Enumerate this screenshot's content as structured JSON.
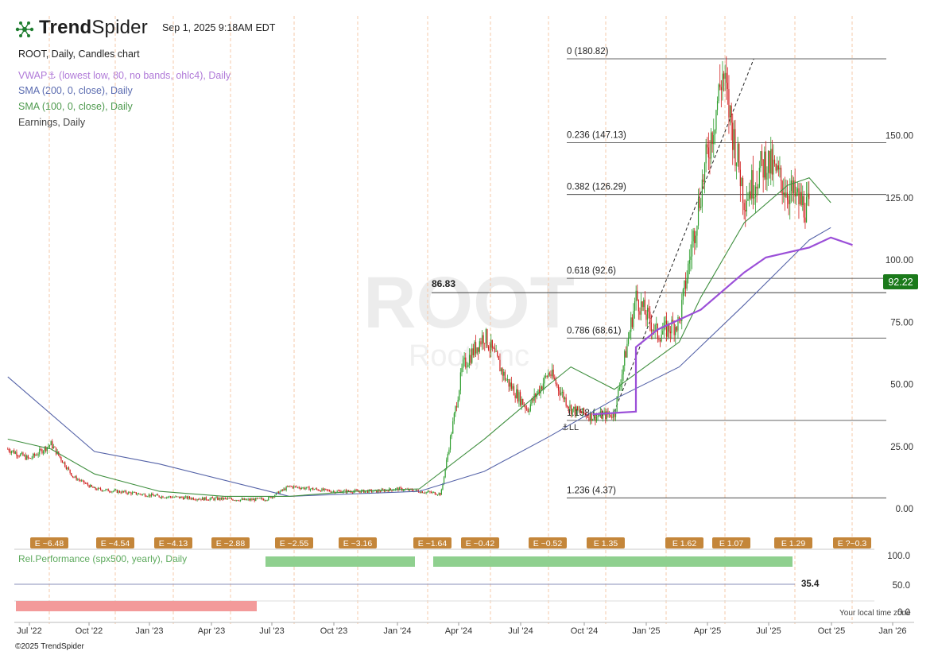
{
  "header": {
    "brand_bold": "Trend",
    "brand_light": "Spider",
    "timestamp": "Sep 1, 2025 9:18AM EDT",
    "chart_title": "ROOT, Daily, Candles chart",
    "watermark_symbol": "ROOT",
    "watermark_name": "Root, Inc"
  },
  "legend": [
    {
      "label": "VWAP⚓ (lowest low, 80, no bands, ohlc4), Daily",
      "color": "#b07ad8"
    },
    {
      "label": "SMA (200, 0, close), Daily",
      "color": "#5a6bb0"
    },
    {
      "label": "SMA (100, 0, close), Daily",
      "color": "#4e9a4e"
    },
    {
      "label": "Earnings, Daily",
      "color": "#444444"
    }
  ],
  "colors": {
    "up": "#2e9e2e",
    "down": "#d11c1c",
    "vwap": "#9b4fd8",
    "sma200": "#5563a8",
    "sma100": "#3f8f3f",
    "earnings": "#c4863a",
    "price_badge": "#1b7a1b",
    "rel_perf": "#8fd08f",
    "bottom_bar": "#f39a9a"
  },
  "chart_data": {
    "type": "candlestick",
    "symbol": "ROOT",
    "interval": "Daily",
    "y_axis": {
      "ticks": [
        "0.00",
        "25.00",
        "50.00",
        "75.00",
        "100.00",
        "125.00",
        "150.00"
      ],
      "ylim": [
        -4,
        186
      ]
    },
    "x_axis": {
      "ticks": [
        "Jul '22",
        "Oct '22",
        "Jan '23",
        "Apr '23",
        "Jul '23",
        "Oct '23",
        "Jan '24",
        "Apr '24",
        "Jul '24",
        "Oct '24",
        "Jan '25",
        "Apr '25",
        "Jul '25",
        "Oct '25",
        "Jan '26"
      ]
    },
    "last_price": "92.22",
    "price_level": {
      "label": "86.83",
      "value": 86.83
    },
    "fib_levels": [
      {
        "label": "0 (180.82)",
        "value": 180.82
      },
      {
        "label": "0.236 (147.13)",
        "value": 147.13
      },
      {
        "label": "0.382 (126.29)",
        "value": 126.29
      },
      {
        "label": "0.618 (92.6)",
        "value": 92.6
      },
      {
        "label": "0.786 (68.61)",
        "value": 68.61
      },
      {
        "label": "1.158 (..)",
        "value": 35.5
      },
      {
        "label": "1.236 (4.37)",
        "value": 4.37
      }
    ],
    "trendline": [
      {
        "x": "Oct '24",
        "y": 39
      },
      {
        "x": "Apr '25",
        "y": 180.8
      }
    ],
    "anchor_label": "⚓LL",
    "series": [
      {
        "name": "Price (close)",
        "points": [
          [
            "Jun '22",
            24
          ],
          [
            "Jul '22",
            20
          ],
          [
            "Aug '22",
            26
          ],
          [
            "Sep '22",
            13
          ],
          [
            "Oct '22",
            8
          ],
          [
            "Nov '22",
            7
          ],
          [
            "Dec '22",
            6
          ],
          [
            "Jan '23",
            5
          ],
          [
            "Feb '23",
            4.5
          ],
          [
            "Mar '23",
            4
          ],
          [
            "Apr '23",
            4
          ],
          [
            "May '23",
            3.5
          ],
          [
            "Jun '23",
            4
          ],
          [
            "Jul '23",
            9
          ],
          [
            "Aug '23",
            8
          ],
          [
            "Sep '23",
            7
          ],
          [
            "Oct '23",
            7
          ],
          [
            "Nov '23",
            7
          ],
          [
            "Dec '23",
            8
          ],
          [
            "Jan '24",
            7
          ],
          [
            "Feb '24",
            6
          ],
          [
            "Mar '24",
            57
          ],
          [
            "Apr '24",
            70
          ],
          [
            "May '24",
            52
          ],
          [
            "Jun '24",
            40
          ],
          [
            "Jul '24",
            55
          ],
          [
            "Aug '24",
            40
          ],
          [
            "Sep '24",
            37
          ],
          [
            "Oct '24",
            38
          ],
          [
            "Nov '24",
            85
          ],
          [
            "Dec '24",
            70
          ],
          [
            "Jan '25",
            75
          ],
          [
            "Feb '25",
            128
          ],
          [
            "Mar '25",
            175
          ],
          [
            "Apr '25",
            125
          ],
          [
            "May '25",
            140
          ],
          [
            "Jun '25",
            128
          ],
          [
            "Jul '25",
            120
          ],
          [
            "Aug '25",
            88
          ],
          [
            "Sep '25",
            92.22
          ]
        ]
      },
      {
        "name": "SMA (200, 0, close)",
        "points": [
          [
            "Jun '22",
            53
          ],
          [
            "Oct '22",
            23
          ],
          [
            "Jan '23",
            18
          ],
          [
            "Jul '23",
            5
          ],
          [
            "Jan '24",
            7
          ],
          [
            "Apr '24",
            15
          ],
          [
            "Jul '24",
            29
          ],
          [
            "Oct '24",
            44
          ],
          [
            "Jan '25",
            57
          ],
          [
            "Apr '25",
            82
          ],
          [
            "Jul '25",
            108
          ],
          [
            "Aug '25",
            113
          ]
        ]
      },
      {
        "name": "SMA (100, 0, close)",
        "points": [
          [
            "Jun '22",
            28
          ],
          [
            "Aug '22",
            24
          ],
          [
            "Oct '22",
            14
          ],
          [
            "Jan '23",
            7
          ],
          [
            "Apr '23",
            5
          ],
          [
            "Jul '23",
            5
          ],
          [
            "Oct '23",
            7
          ],
          [
            "Jan '24",
            8
          ],
          [
            "Apr '24",
            28
          ],
          [
            "Jul '24",
            50
          ],
          [
            "Aug '24",
            57
          ],
          [
            "Oct '24",
            48
          ],
          [
            "Jan '25",
            67
          ],
          [
            "Feb '25",
            85
          ],
          [
            "Apr '25",
            115
          ],
          [
            "Jun '25",
            130
          ],
          [
            "Jul '25",
            133
          ],
          [
            "Aug '25",
            123
          ]
        ]
      },
      {
        "name": "VWAP (anchored)",
        "points": [
          [
            "Sep '24",
            38
          ],
          [
            "Nov '24",
            39
          ],
          [
            "Nov '24",
            65
          ],
          [
            "Dec '24",
            72
          ],
          [
            "Feb '25",
            80
          ],
          [
            "Apr '25",
            95
          ],
          [
            "May '25",
            101
          ],
          [
            "Jul '25",
            105
          ],
          [
            "Aug '25",
            109
          ],
          [
            "Sep '25",
            106
          ]
        ]
      }
    ],
    "earnings": [
      "E ~6.48",
      "E ~4.54",
      "E ~4.13",
      "E ~2.88",
      "E ~2.55",
      "E ~3.16",
      "E ~1.64",
      "E ~0.42",
      "E ~0.52",
      "E 1.35",
      "E 1.62",
      "E 1.07",
      "E 1.29",
      "E ?~0.3"
    ],
    "rel_performance": {
      "label": "Rel.Performance (spx500, yearly), Daily",
      "ticks": [
        "100.0",
        "50.0",
        "0.0"
      ],
      "value_label": "35.4"
    }
  },
  "footer": {
    "local_time_note": "Your local time zone",
    "copyright": "©2025 TrendSpider"
  }
}
